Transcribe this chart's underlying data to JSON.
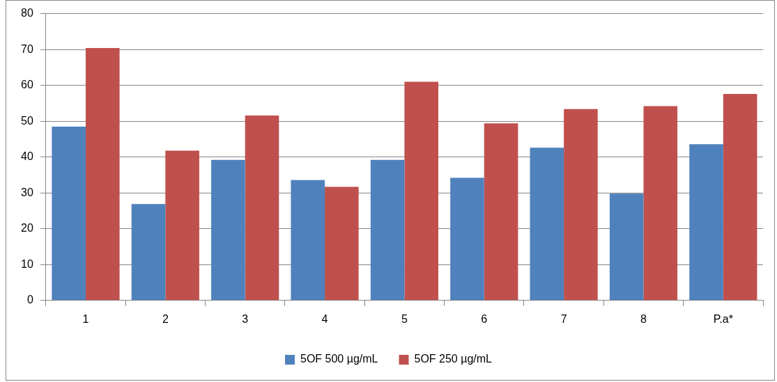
{
  "chart_data": {
    "type": "bar",
    "categories": [
      "1",
      "2",
      "3",
      "4",
      "5",
      "6",
      "7",
      "8",
      "P.a*"
    ],
    "series": [
      {
        "name": "5OF 500 µg/mL",
        "color": "#4f81bd",
        "values": [
          48.5,
          26.9,
          39.2,
          33.6,
          39.2,
          34.2,
          42.6,
          29.8,
          43.6
        ]
      },
      {
        "name": "5OF 250 µg/mL",
        "color": "#c0504d",
        "values": [
          70.4,
          41.8,
          51.6,
          31.7,
          61.0,
          49.4,
          53.4,
          54.2,
          57.6
        ]
      }
    ],
    "ylim": [
      0,
      80
    ],
    "yticks": [
      0,
      10,
      20,
      30,
      40,
      50,
      60,
      70,
      80
    ],
    "grid": "y",
    "legend": "bottom"
  }
}
